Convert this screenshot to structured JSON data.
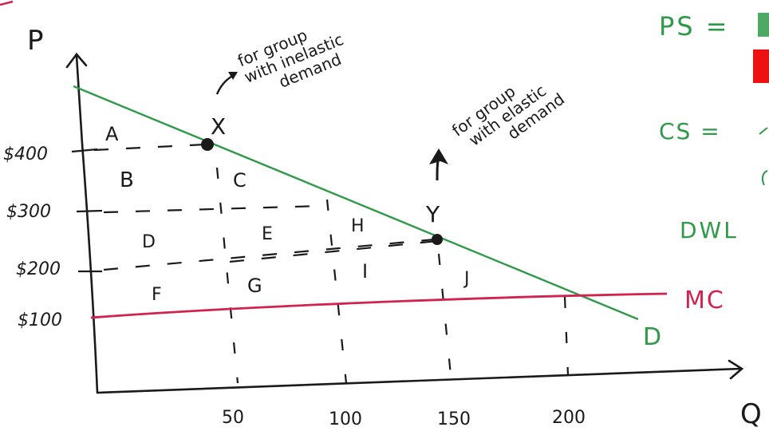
{
  "axes": {
    "y_label": "P",
    "x_label": "Q"
  },
  "price_ticks": [
    "$400",
    "$300",
    "$200",
    "$100"
  ],
  "quantity_ticks": [
    "50",
    "100",
    "150",
    "200"
  ],
  "regions": [
    "A",
    "B",
    "C",
    "D",
    "E",
    "F",
    "G",
    "H",
    "I",
    "J"
  ],
  "points": {
    "x": {
      "label": "X",
      "note_line1": "for group",
      "note_line2": "with inelastic",
      "note_line3": "demand"
    },
    "y": {
      "label": "Y",
      "note_line1": "for group",
      "note_line2": "with elastic",
      "note_line3": "demand"
    }
  },
  "curves": {
    "demand": "D",
    "mc": "MC"
  },
  "right_panel": {
    "ps": "PS = ",
    "cs": "CS =",
    "dwl": "DWL"
  },
  "colors": {
    "demand": "#2e9a48",
    "mc": "#d2234f",
    "ink": "#1a1a1a",
    "highlight": "#ee1111"
  }
}
